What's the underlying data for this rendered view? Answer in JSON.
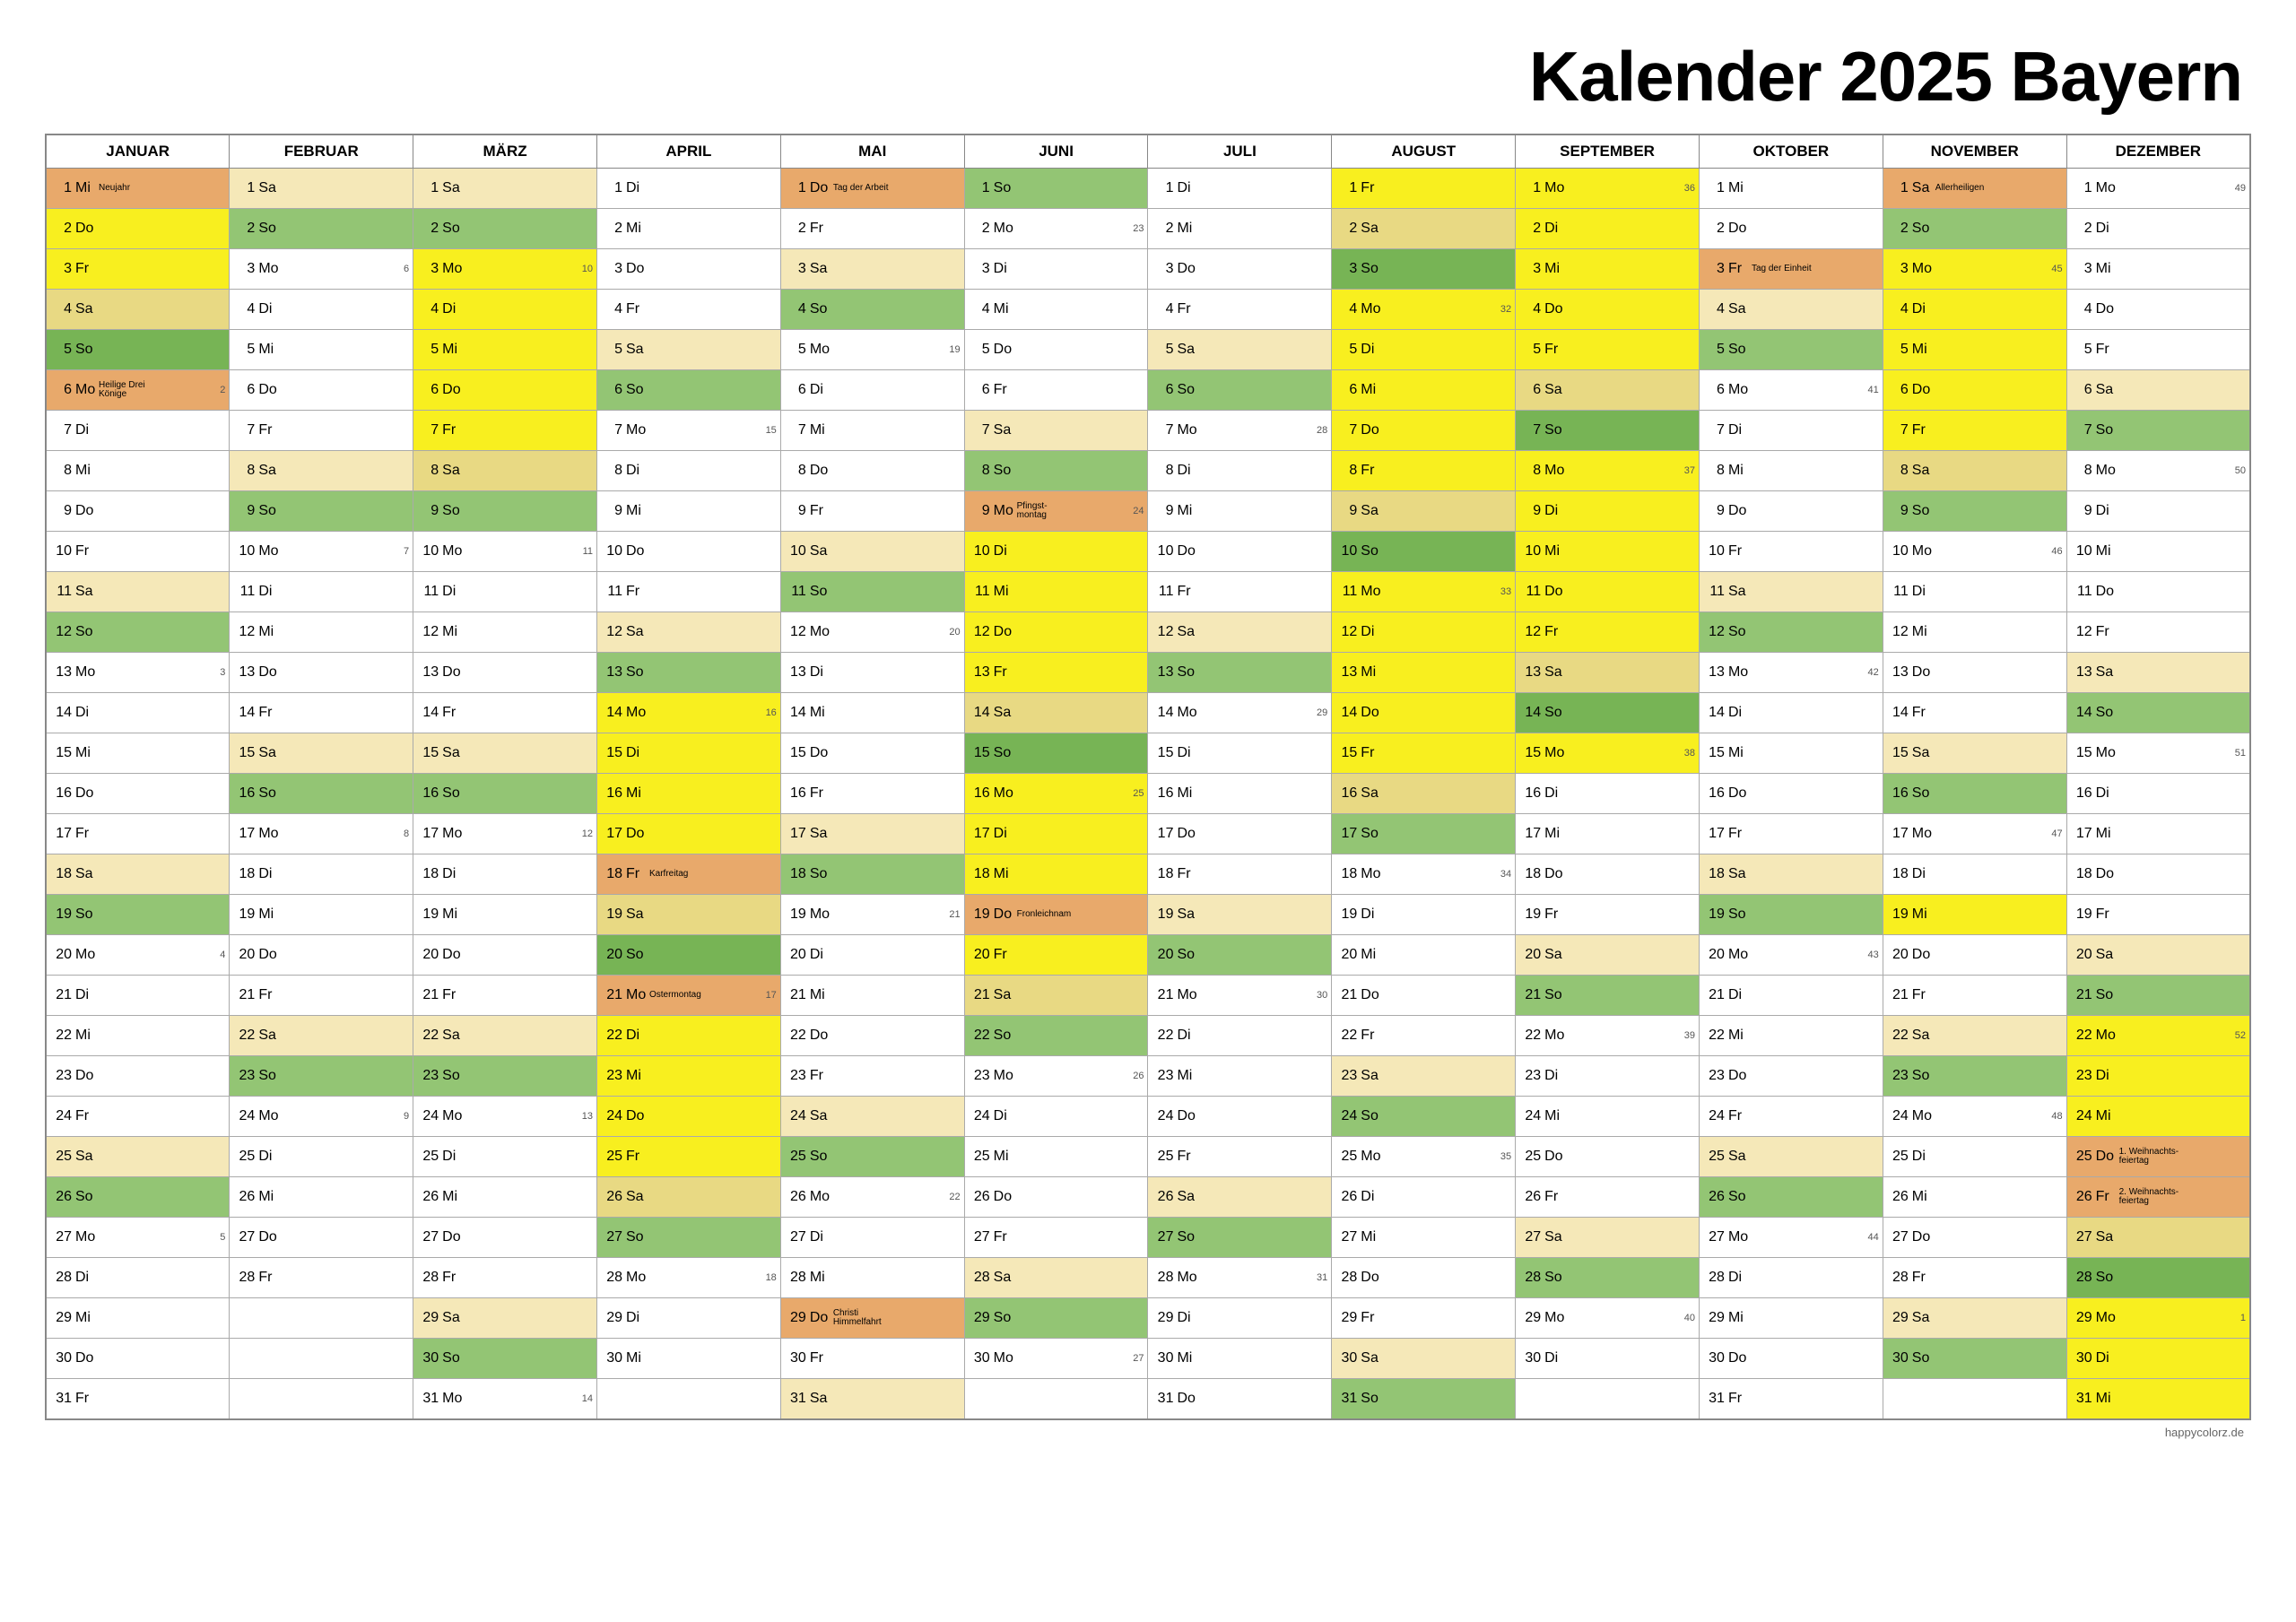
{
  "title": "Kalender 2025 Bayern",
  "footer": "happycolorz.de",
  "colors": {
    "holiday": "#e8a96b",
    "sunday": "#93c574",
    "saturday": "#f5e8b8",
    "vacation": "#f8ef1f",
    "vac_sun": "#77b455",
    "vac_sat": "#e8d983",
    "border": "#888888",
    "white": "#ffffff"
  },
  "months": [
    "JANUAR",
    "FEBRUAR",
    "MÄRZ",
    "APRIL",
    "MAI",
    "JUNI",
    "JULI",
    "AUGUST",
    "SEPTEMBER",
    "OKTOBER",
    "NOVEMBER",
    "DEZEMBER"
  ],
  "monthLengths": [
    31,
    28,
    31,
    30,
    31,
    30,
    31,
    31,
    30,
    31,
    30,
    31
  ],
  "firstDow": [
    2,
    5,
    5,
    1,
    3,
    6,
    1,
    4,
    0,
    2,
    5,
    0
  ],
  "dowNames": [
    "Mo",
    "Di",
    "Mi",
    "Do",
    "Fr",
    "Sa",
    "So"
  ],
  "vacationRanges": [
    [
      [
        2,
        5
      ]
    ],
    [],
    [
      [
        3,
        8
      ]
    ],
    [
      [
        14,
        26
      ]
    ],
    [],
    [
      [
        10,
        21
      ]
    ],
    [],
    [
      [
        1,
        16
      ]
    ],
    [
      [
        1,
        15
      ]
    ],
    [],
    [
      [
        3,
        8
      ],
      [
        19,
        19
      ]
    ],
    [
      [
        22,
        31
      ]
    ]
  ],
  "holidays": {
    "0": {
      "1": "Neujahr",
      "6": "Heilige Drei Könige"
    },
    "3": {
      "18": "Karfreitag",
      "21": "Ostermontag"
    },
    "4": {
      "1": "Tag der Arbeit",
      "29": "Christi Himmelfahrt"
    },
    "5": {
      "9": "Pfingst- montag",
      "19": "Fronleichnam"
    },
    "9": {
      "3": "Tag der Einheit"
    },
    "10": {
      "1": "Allerheiligen"
    },
    "11": {
      "25": "1. Weihnachts- feiertag",
      "26": "2. Weihnachts- feiertag"
    }
  },
  "weekNumbers": {
    "0": {
      "6": 2,
      "13": 3,
      "20": 4,
      "27": 5
    },
    "1": {
      "3": 6,
      "10": 7,
      "17": 8,
      "24": 9
    },
    "2": {
      "3": 10,
      "10": 11,
      "17": 12,
      "24": 13,
      "31": 14
    },
    "3": {
      "7": 15,
      "14": 16,
      "21": 17,
      "28": 18
    },
    "4": {
      "5": 19,
      "12": 20,
      "19": 21,
      "26": 22
    },
    "5": {
      "2": 23,
      "9": 24,
      "16": 25,
      "23": 26,
      "30": 27
    },
    "6": {
      "7": 28,
      "14": 29,
      "21": 30,
      "28": 31
    },
    "7": {
      "4": 32,
      "11": 33,
      "18": 34,
      "25": 35
    },
    "8": {
      "1": 36,
      "8": 37,
      "15": 38,
      "22": 39,
      "29": 40
    },
    "9": {
      "6": 41,
      "13": 42,
      "20": 43,
      "27": 44
    },
    "10": {
      "3": 45,
      "10": 46,
      "17": 47,
      "24": 48
    },
    "11": {
      "1": 49,
      "8": 50,
      "15": 51,
      "22": 52,
      "29": 1
    }
  }
}
